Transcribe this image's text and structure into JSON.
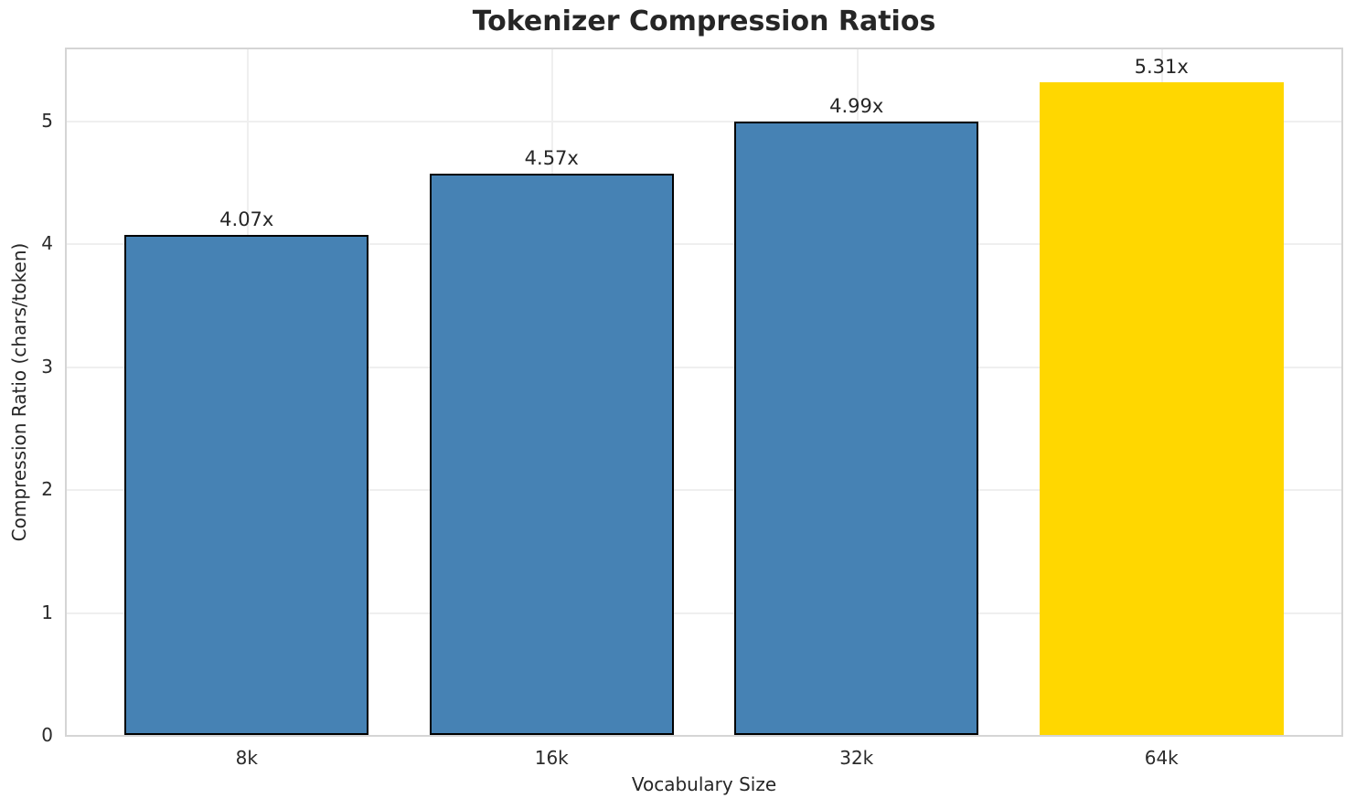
{
  "chart_data": {
    "type": "bar",
    "title": "Tokenizer Compression Ratios",
    "xlabel": "Vocabulary Size",
    "ylabel": "Compression Ratio (chars/token)",
    "categories": [
      "8k",
      "16k",
      "32k",
      "64k"
    ],
    "values": [
      4.07,
      4.57,
      4.99,
      5.31
    ],
    "bar_labels": [
      "4.07x",
      "4.57x",
      "4.99x",
      "5.31x"
    ],
    "bar_colors": [
      "#4682B4",
      "#4682B4",
      "#4682B4",
      "#FFD700"
    ],
    "bar_edge_colors": [
      "#000000",
      "#000000",
      "#000000",
      "none"
    ],
    "highlight_index": 3,
    "yticks": [
      0,
      1,
      2,
      3,
      4,
      5
    ],
    "ylim": [
      0,
      5.58
    ],
    "bar_width_fraction": 0.8,
    "grid": true,
    "grid_color": "#efefef",
    "spine_color": "#d5d5d5",
    "text_color": "#262626",
    "background_color": "#ffffff",
    "legend": null
  }
}
